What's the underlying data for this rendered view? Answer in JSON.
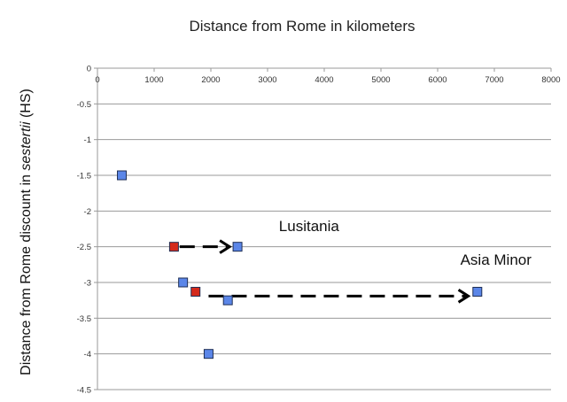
{
  "chart_data": {
    "type": "scatter",
    "title": "Distance from Rome in kilometers",
    "ylabel_main": "Distance from Rome discount in ",
    "ylabel_italic": "sestertii",
    "ylabel_suffix": " (HS)",
    "xlim": [
      0,
      8000
    ],
    "ylim": [
      -4.5,
      0
    ],
    "x_ticks": [
      0,
      1000,
      2000,
      3000,
      4000,
      5000,
      6000,
      7000,
      8000
    ],
    "y_ticks": [
      0,
      -0.5,
      -1,
      -1.5,
      -2,
      -2.5,
      -3,
      -3.5,
      -4,
      -4.5
    ],
    "y_tick_labels": [
      "0",
      "-0.5",
      "-1",
      "-1.5",
      "-2",
      "-2.5",
      "-3",
      "-3.5",
      "-4",
      "-4.5"
    ],
    "grid": "horizontal",
    "series": [
      {
        "color": "#5b86e8",
        "points": [
          {
            "x": 430,
            "y": -1.5
          },
          {
            "x": 1510,
            "y": -3.0
          },
          {
            "x": 1960,
            "y": -4.0
          },
          {
            "x": 2300,
            "y": -3.25
          },
          {
            "x": 2470,
            "y": -2.5
          },
          {
            "x": 6700,
            "y": -3.13
          }
        ]
      },
      {
        "color": "#d42a1c",
        "points": [
          {
            "x": 1350,
            "y": -2.5
          },
          {
            "x": 1730,
            "y": -3.13
          }
        ]
      }
    ],
    "arrows": [
      {
        "from": [
          1450,
          -2.5
        ],
        "to": [
          2330,
          -2.5
        ],
        "style": "dashed"
      },
      {
        "from": [
          1960,
          -3.19
        ],
        "to": [
          6540,
          -3.19
        ],
        "style": "dashed"
      }
    ],
    "annotations": [
      {
        "text": "Lusitania",
        "x": 3200,
        "y": -2.28
      },
      {
        "text": "Asia Minor",
        "x": 6400,
        "y": -2.75
      }
    ]
  }
}
